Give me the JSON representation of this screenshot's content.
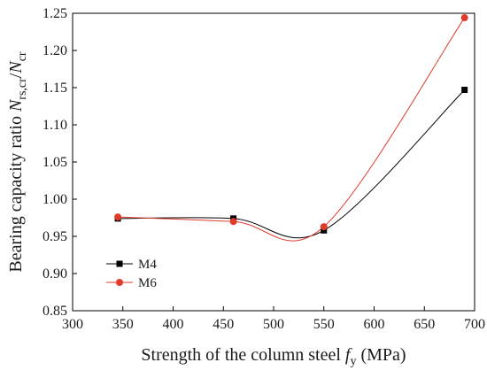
{
  "chart_data": {
    "type": "line",
    "title": "",
    "xlabel": {
      "main": "Strength of the column steel ",
      "symbol": "f",
      "subscript": "y",
      "unit": " (MPa)"
    },
    "ylabel": {
      "main": "Bearing capacity ratio ",
      "symbol1": "N",
      "sub1": "rs,cr",
      "slash": "/",
      "symbol2": "N",
      "sub2": "cr"
    },
    "xlim": [
      300,
      700
    ],
    "ylim": [
      0.85,
      1.25
    ],
    "xticks": [
      300,
      350,
      400,
      450,
      500,
      550,
      600,
      650,
      700
    ],
    "yticks": [
      0.85,
      0.9,
      0.95,
      1.0,
      1.05,
      1.1,
      1.15,
      1.2,
      1.25
    ],
    "grid": false,
    "legend_position": "bottom-left",
    "series": [
      {
        "name": "M4",
        "color": "#000000",
        "marker": "square",
        "x": [
          345,
          460,
          550,
          690
        ],
        "y": [
          0.974,
          0.974,
          0.958,
          1.147
        ]
      },
      {
        "name": "M6",
        "color": "#e03a2b",
        "marker": "circle",
        "x": [
          345,
          460,
          550,
          690
        ],
        "y": [
          0.976,
          0.97,
          0.963,
          1.244
        ]
      }
    ]
  }
}
